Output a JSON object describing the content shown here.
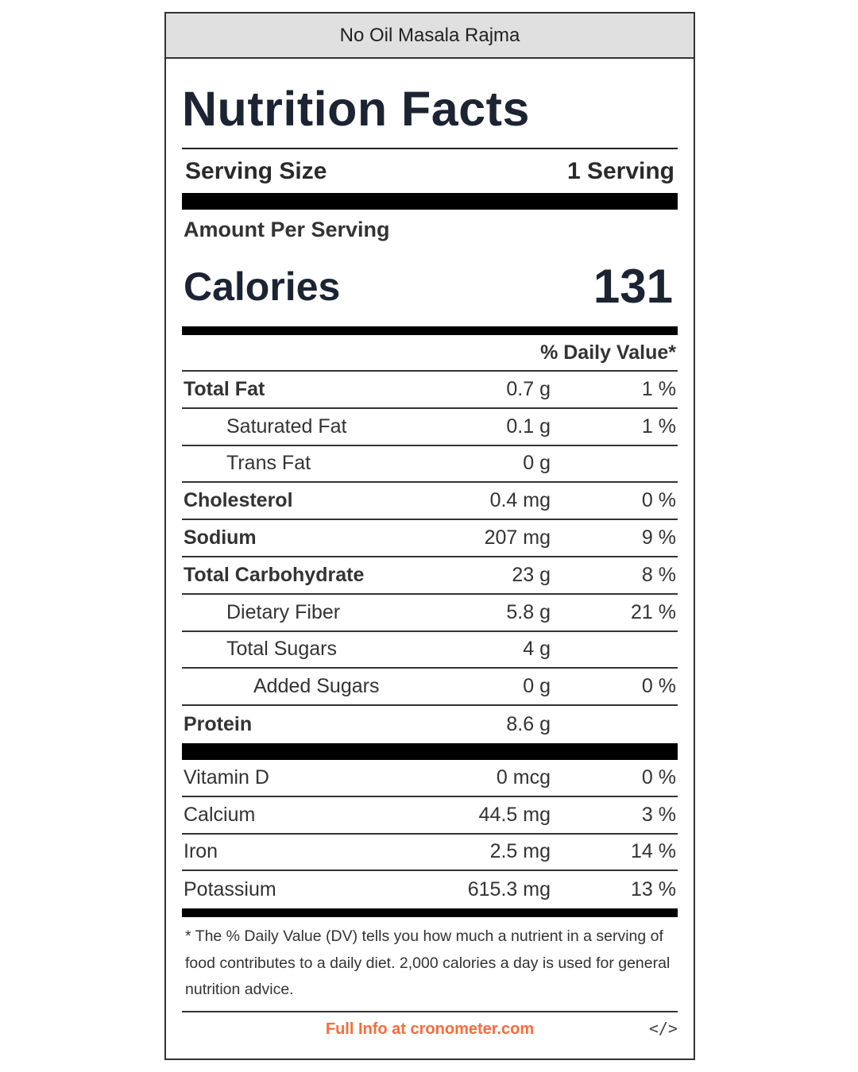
{
  "header": {
    "recipe_name": "No Oil Masala Rajma"
  },
  "label": {
    "title": "Nutrition Facts",
    "serving_size_label": "Serving Size",
    "serving_size_value": "1 Serving",
    "amount_per_serving": "Amount Per Serving",
    "calories_label": "Calories",
    "calories_value": "131",
    "daily_value_header": "% Daily Value*"
  },
  "nutrients": [
    {
      "name": "Total Fat",
      "amount": "0.7 g",
      "dv": "1 %"
    },
    {
      "name": "Saturated Fat",
      "amount": "0.1 g",
      "dv": "1 %"
    },
    {
      "name": "Trans Fat",
      "amount": "0 g",
      "dv": ""
    },
    {
      "name": "Cholesterol",
      "amount": "0.4 mg",
      "dv": "0 %"
    },
    {
      "name": "Sodium",
      "amount": "207 mg",
      "dv": "9 %"
    },
    {
      "name": "Total Carbohydrate",
      "amount": "23 g",
      "dv": "8 %"
    },
    {
      "name": "Dietary Fiber",
      "amount": "5.8 g",
      "dv": "21 %"
    },
    {
      "name": "Total Sugars",
      "amount": "4 g",
      "dv": ""
    },
    {
      "name": "Added Sugars",
      "amount": "0 g",
      "dv": "0 %"
    },
    {
      "name": "Protein",
      "amount": "8.6 g",
      "dv": ""
    }
  ],
  "micronutrients": [
    {
      "name": "Vitamin D",
      "amount": "0 mcg",
      "dv": "0 %"
    },
    {
      "name": "Calcium",
      "amount": "44.5 mg",
      "dv": "3 %"
    },
    {
      "name": "Iron",
      "amount": "2.5 mg",
      "dv": "14 %"
    },
    {
      "name": "Potassium",
      "amount": "615.3 mg",
      "dv": "13 %"
    }
  ],
  "footnote": "* The % Daily Value (DV) tells you how much a nutrient in a serving of food contributes to a daily diet. 2,000 calories a day is used for general nutrition advice.",
  "footer": {
    "link_text": "Full Info at cronometer.com",
    "embed_icon": "</>"
  },
  "colors": {
    "link": "#ff6a39",
    "header_bg": "#e0e0e0",
    "rule": "#000000"
  }
}
